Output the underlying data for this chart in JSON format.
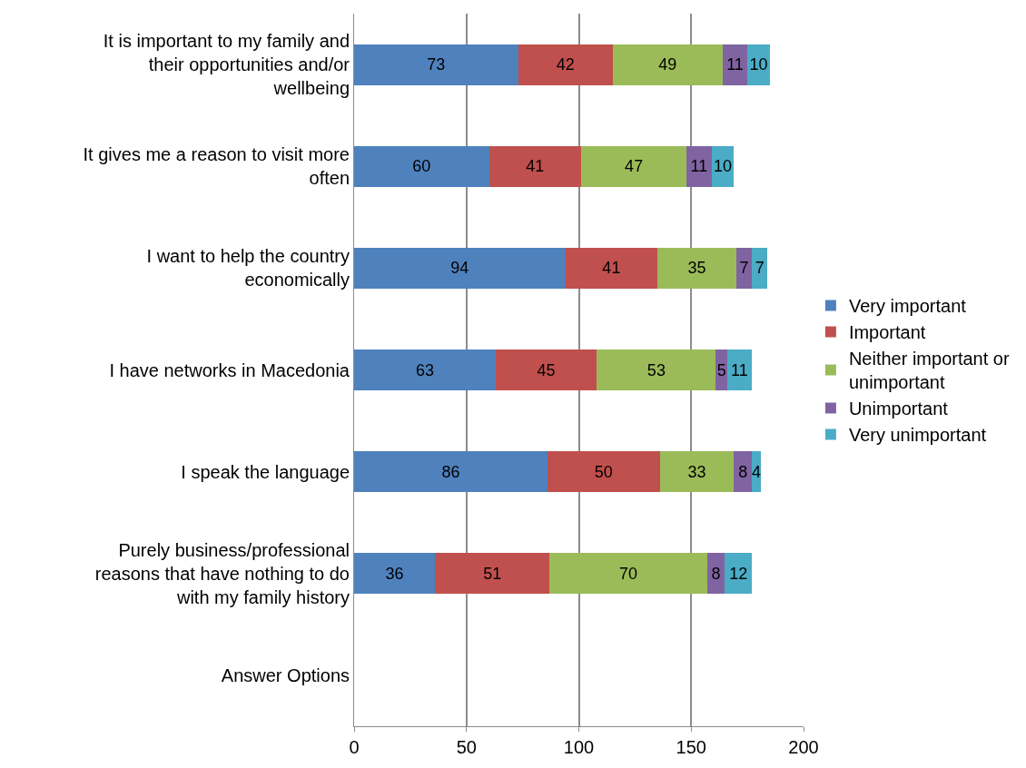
{
  "chart_data": {
    "type": "bar",
    "orientation": "horizontal",
    "stacked": true,
    "data_labels": true,
    "grid": "x",
    "legend": "right",
    "xlim": [
      0,
      200
    ],
    "xticks": [
      0,
      50,
      100,
      150,
      200
    ],
    "categories": [
      "It is important to my family and their opportunities and/or wellbeing",
      "It gives me a reason to visit more often",
      "I want to help the country economically",
      "I have networks in Macedonia",
      "I speak the language",
      "Purely business/professional reasons that have nothing to do with my family history",
      "Answer Options"
    ],
    "series": [
      {
        "name": "Very important",
        "color": "#4f81bd",
        "values": [
          73,
          60,
          94,
          63,
          86,
          36,
          null
        ]
      },
      {
        "name": "Important",
        "color": "#c0504d",
        "values": [
          42,
          41,
          41,
          45,
          50,
          51,
          null
        ]
      },
      {
        "name": "Neither important or unimportant",
        "color": "#9bbb59",
        "values": [
          49,
          47,
          35,
          53,
          33,
          70,
          null
        ]
      },
      {
        "name": "Unimportant",
        "color": "#8064a2",
        "values": [
          11,
          11,
          7,
          5,
          8,
          8,
          null
        ]
      },
      {
        "name": "Very unimportant",
        "color": "#4bacc6",
        "values": [
          10,
          10,
          7,
          11,
          4,
          12,
          null
        ]
      }
    ]
  }
}
